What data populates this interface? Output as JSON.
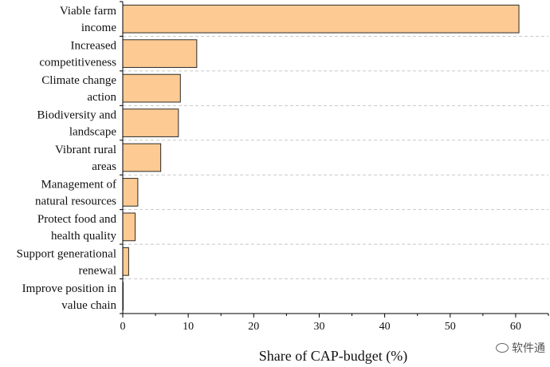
{
  "chart_data": {
    "type": "bar",
    "orientation": "horizontal",
    "categories": [
      [
        "Viable farm",
        "income"
      ],
      [
        "Increased",
        "competitiveness"
      ],
      [
        "Climate change",
        "action"
      ],
      [
        "Biodiversity and",
        "landscape"
      ],
      [
        "Vibrant rural",
        "areas"
      ],
      [
        "Management of",
        "natural resources"
      ],
      [
        "Protect food and",
        "health quality"
      ],
      [
        "Support generational",
        "renewal"
      ],
      [
        "Improve position in",
        "value chain"
      ]
    ],
    "values": [
      60.5,
      11.3,
      8.8,
      8.5,
      5.8,
      2.3,
      1.9,
      0.9,
      0.05
    ],
    "title": "",
    "xlabel": "Share of CAP-budget (%)",
    "ylabel": "",
    "xlim": [
      0,
      65
    ],
    "xticks": [
      0,
      10,
      20,
      30,
      40,
      50,
      60
    ],
    "grid": "horizontal-dashed",
    "colors": {
      "bar_fill": "#fcca92",
      "bar_stroke": "#2b2b2b",
      "grid": "#c8c8c8",
      "axis": "#000000"
    }
  },
  "watermark": {
    "text": "软件通",
    "icon": "wechat-icon"
  }
}
